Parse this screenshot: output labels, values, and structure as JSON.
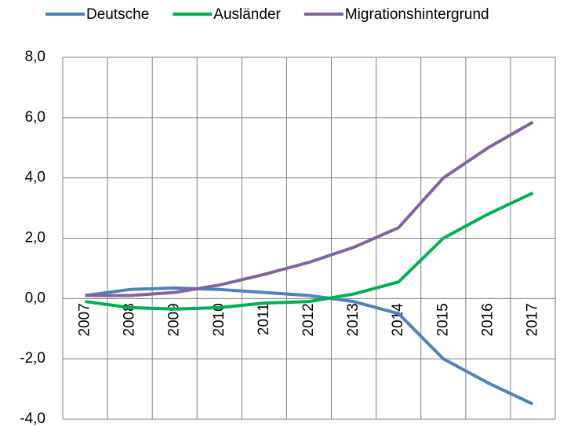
{
  "chart_data": {
    "type": "line",
    "categories": [
      "2007",
      "2008",
      "2009",
      "2010",
      "2011",
      "2012",
      "2013",
      "2014",
      "2015",
      "2016",
      "2017"
    ],
    "series": [
      {
        "name": "Deutsche",
        "color": "#4f81bd",
        "values": [
          0.1,
          0.3,
          0.35,
          0.3,
          0.2,
          0.1,
          -0.1,
          -0.5,
          -2.0,
          -2.8,
          -3.5
        ]
      },
      {
        "name": "Ausländer",
        "color": "#00b050",
        "values": [
          -0.1,
          -0.3,
          -0.35,
          -0.3,
          -0.15,
          -0.1,
          0.15,
          0.55,
          2.0,
          2.8,
          3.5
        ]
      },
      {
        "name": "Migrationshintergrund",
        "color": "#8064a2",
        "values": [
          0.1,
          0.1,
          0.2,
          0.45,
          0.8,
          1.2,
          1.7,
          2.35,
          4.0,
          5.0,
          5.85
        ]
      }
    ],
    "ylim": [
      -4,
      8
    ],
    "yticks": [
      {
        "value": -4,
        "label": "-4,0"
      },
      {
        "value": -2,
        "label": "-2,0"
      },
      {
        "value": 0,
        "label": "0,0"
      },
      {
        "value": 2,
        "label": "2,0"
      },
      {
        "value": 4,
        "label": "4,0"
      },
      {
        "value": 6,
        "label": "6,0"
      },
      {
        "value": 8,
        "label": "8,0"
      }
    ],
    "grid": true,
    "legend": "top"
  }
}
